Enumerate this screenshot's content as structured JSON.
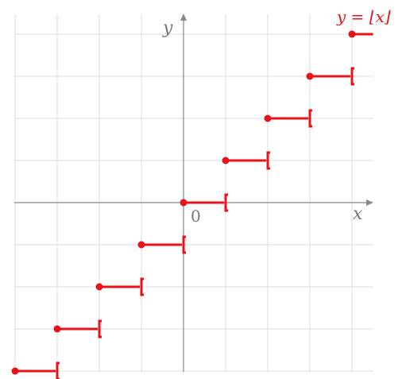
{
  "chart_data": {
    "type": "line",
    "title": "",
    "function_label": "y = ⌊x⌋",
    "xlabel": "x",
    "ylabel": "y",
    "origin_label": "0",
    "xlim": [
      -4.2,
      4.5
    ],
    "ylim": [
      -4.2,
      4.5
    ],
    "grid": true,
    "colors": {
      "series": "#e8121b",
      "axis": "#888888",
      "grid": "#dedede",
      "label": "#777777"
    },
    "series": [
      {
        "segments": [
          {
            "x": [
              -4,
              -3
            ],
            "y": -4
          },
          {
            "x": [
              -3,
              -2
            ],
            "y": -3
          },
          {
            "x": [
              -2,
              -1
            ],
            "y": -2
          },
          {
            "x": [
              -1,
              0
            ],
            "y": -1
          },
          {
            "x": [
              0,
              1
            ],
            "y": 0
          },
          {
            "x": [
              1,
              2
            ],
            "y": 1
          },
          {
            "x": [
              2,
              3
            ],
            "y": 2
          },
          {
            "x": [
              3,
              4
            ],
            "y": 3
          },
          {
            "x": [
              4,
              4.5
            ],
            "y": 4
          }
        ]
      }
    ]
  }
}
